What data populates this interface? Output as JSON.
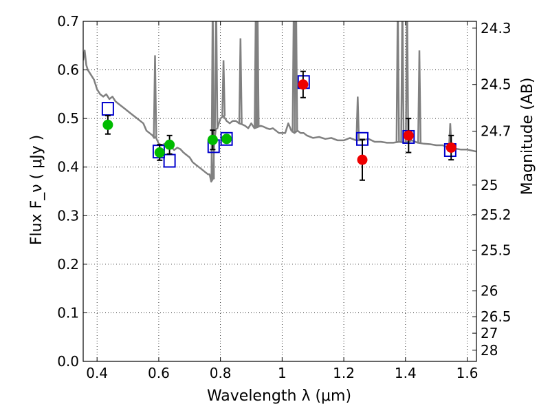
{
  "chart_data": {
    "type": "scatter",
    "xlabel": "Wavelength  λ (μm)",
    "ylabel": "Flux  F_ν  ( μJy )",
    "ylabel_right": "Magnitude (AB)",
    "xlim": [
      0.355,
      1.63
    ],
    "ylim": [
      0.0,
      0.7
    ],
    "grid": true,
    "x_ticks": [
      0.4,
      0.6,
      0.8,
      1.0,
      1.2,
      1.4,
      1.6
    ],
    "x_tick_labels": [
      "0.4",
      "0.6",
      "0.8",
      "1",
      "1.2",
      "1.4",
      "1.6"
    ],
    "y_ticks": [
      0.0,
      0.1,
      0.2,
      0.3,
      0.4,
      0.5,
      0.6,
      0.7
    ],
    "y_tick_labels": [
      "0.0",
      "0.1",
      "0.2",
      "0.3",
      "0.4",
      "0.5",
      "0.6",
      "0.7"
    ],
    "right_ticks": [
      {
        "flux": 0.686,
        "label": "24.3"
      },
      {
        "flux": 0.57,
        "label": "24.5"
      },
      {
        "flux": 0.474,
        "label": "24.7"
      },
      {
        "flux": 0.363,
        "label": "25"
      },
      {
        "flux": 0.302,
        "label": "25.2"
      },
      {
        "flux": 0.229,
        "label": "25.5"
      },
      {
        "flux": 0.145,
        "label": "26"
      },
      {
        "flux": 0.092,
        "label": "26.5"
      },
      {
        "flux": 0.058,
        "label": "27"
      },
      {
        "flux": 0.023,
        "label": "28"
      }
    ],
    "colors": {
      "spectrum": "#808080",
      "model": "#0000cc",
      "green": "#00bb00",
      "red": "#ee0000",
      "errorbar": "#000000"
    },
    "series": [
      {
        "kind": "line",
        "color_key": "spectrum",
        "x": [
          0.355,
          0.36,
          0.365,
          0.37,
          0.38,
          0.39,
          0.4,
          0.41,
          0.42,
          0.43,
          0.44,
          0.45,
          0.46,
          0.47,
          0.48,
          0.49,
          0.5,
          0.51,
          0.52,
          0.53,
          0.54,
          0.55,
          0.56,
          0.57,
          0.58,
          0.585,
          0.59,
          0.595,
          0.6,
          0.61,
          0.62,
          0.63,
          0.64,
          0.65,
          0.66,
          0.67,
          0.68,
          0.69,
          0.7,
          0.71,
          0.72,
          0.73,
          0.74,
          0.75,
          0.76,
          0.765,
          0.77,
          0.775,
          0.78,
          0.785,
          0.79,
          0.8,
          0.81,
          0.82,
          0.83,
          0.84,
          0.85,
          0.86,
          0.87,
          0.88,
          0.89,
          0.9,
          0.91,
          0.92,
          0.93,
          0.94,
          0.95,
          0.96,
          0.97,
          0.98,
          0.99,
          1.0,
          1.01,
          1.02,
          1.03,
          1.04,
          1.05,
          1.06,
          1.07,
          1.08,
          1.1,
          1.12,
          1.14,
          1.16,
          1.18,
          1.2,
          1.22,
          1.24,
          1.26,
          1.28,
          1.3,
          1.32,
          1.34,
          1.36,
          1.38,
          1.4,
          1.42,
          1.44,
          1.46,
          1.48,
          1.5,
          1.52,
          1.54,
          1.56,
          1.58,
          1.6,
          1.63
        ],
        "y": [
          0.62,
          0.64,
          0.61,
          0.6,
          0.59,
          0.58,
          0.56,
          0.55,
          0.545,
          0.55,
          0.54,
          0.545,
          0.535,
          0.53,
          0.525,
          0.52,
          0.515,
          0.51,
          0.505,
          0.5,
          0.495,
          0.49,
          0.475,
          0.47,
          0.465,
          0.46,
          0.462,
          0.455,
          0.448,
          0.445,
          0.448,
          0.444,
          0.442,
          0.435,
          0.44,
          0.437,
          0.43,
          0.425,
          0.42,
          0.41,
          0.405,
          0.4,
          0.395,
          0.39,
          0.385,
          0.385,
          0.37,
          0.375,
          0.45,
          0.478,
          0.48,
          0.5,
          0.505,
          0.495,
          0.49,
          0.495,
          0.495,
          0.49,
          0.488,
          0.485,
          0.48,
          0.49,
          0.48,
          0.482,
          0.485,
          0.483,
          0.48,
          0.478,
          0.48,
          0.475,
          0.47,
          0.47,
          0.47,
          0.49,
          0.475,
          0.47,
          0.475,
          0.47,
          0.47,
          0.465,
          0.46,
          0.462,
          0.458,
          0.46,
          0.455,
          0.455,
          0.46,
          0.455,
          0.455,
          0.458,
          0.452,
          0.452,
          0.45,
          0.45,
          0.452,
          0.45,
          0.455,
          0.45,
          0.448,
          0.447,
          0.445,
          0.445,
          0.44,
          0.438,
          0.436,
          0.436,
          0.432
        ]
      },
      {
        "kind": "line-spikes",
        "color_key": "spectrum",
        "spikes": [
          {
            "x": 0.588,
            "y": 0.63
          },
          {
            "x": 0.775,
            "y": 0.7
          },
          {
            "x": 0.786,
            "y": 0.7
          },
          {
            "x": 0.81,
            "y": 0.62
          },
          {
            "x": 0.865,
            "y": 0.665
          },
          {
            "x": 0.915,
            "y": 0.7
          },
          {
            "x": 0.92,
            "y": 0.7
          },
          {
            "x": 1.038,
            "y": 0.7
          },
          {
            "x": 1.045,
            "y": 0.7
          },
          {
            "x": 1.245,
            "y": 0.545
          },
          {
            "x": 1.375,
            "y": 0.7
          },
          {
            "x": 1.39,
            "y": 0.7
          },
          {
            "x": 1.405,
            "y": 0.7
          },
          {
            "x": 1.445,
            "y": 0.64
          },
          {
            "x": 1.545,
            "y": 0.49
          }
        ]
      },
      {
        "kind": "open-square",
        "color_key": "model",
        "x": [
          0.435,
          0.6,
          0.635,
          0.778,
          0.82,
          1.07,
          1.26,
          1.41,
          1.545
        ],
        "y": [
          0.52,
          0.432,
          0.413,
          0.443,
          0.458,
          0.575,
          0.458,
          0.462,
          0.435
        ]
      },
      {
        "kind": "filled-circle",
        "color_key": "green",
        "x": [
          0.435,
          0.603,
          0.635,
          0.775,
          0.82
        ],
        "y": [
          0.487,
          0.43,
          0.446,
          0.456,
          0.458
        ],
        "yerr": [
          0.019,
          0.016,
          0.019,
          0.02,
          0.0
        ]
      },
      {
        "kind": "filled-circle",
        "color_key": "red",
        "x": [
          1.068,
          1.26,
          1.41,
          1.548
        ],
        "y": [
          0.57,
          0.415,
          0.465,
          0.44
        ],
        "yerr": [
          0.027,
          0.042,
          0.035,
          0.025
        ]
      }
    ]
  }
}
